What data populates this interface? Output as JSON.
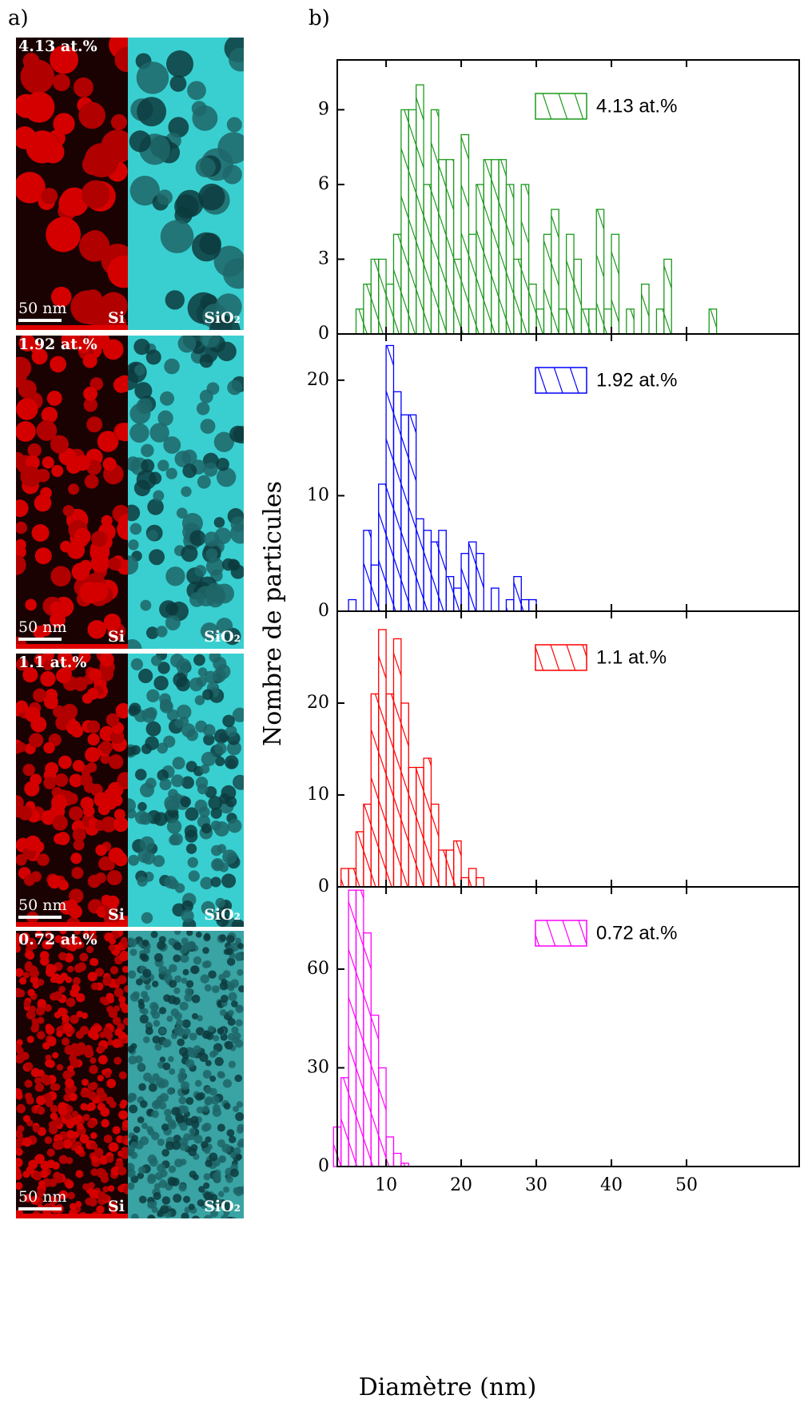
{
  "panel_labels": [
    "a)",
    "b)"
  ],
  "images": [
    {
      "label": "4.13 at.%",
      "scale": "50 nm",
      "left": "Si",
      "right": "SiO₂"
    },
    {
      "label": "1.92 at.%",
      "scale": "50 nm",
      "left": "Si",
      "right": "SiO₂"
    },
    {
      "label": "1.1 at.%",
      "scale": "50 nm",
      "left": "Si",
      "right": "SiO₂"
    },
    {
      "label": "0.72 at.%",
      "scale": "50 nm",
      "left": "Si",
      "right": "SiO₂"
    }
  ],
  "xlabel": "Diamètre (nm)",
  "ylabel": "Nombre de particules",
  "chart_data": [
    {
      "type": "histogram",
      "series_name": "4.13 at.%",
      "color": "#1a9a1a",
      "bins": [
        6,
        7,
        8,
        9,
        10,
        11,
        12,
        13,
        14,
        15,
        16,
        17,
        18,
        19,
        20,
        21,
        22,
        23,
        24,
        25,
        26,
        27,
        28,
        29,
        30,
        31,
        32,
        33,
        34,
        35,
        36,
        37,
        38,
        39,
        40,
        41,
        42,
        43,
        44,
        45,
        46,
        47,
        48,
        49,
        50,
        51,
        52,
        53,
        54
      ],
      "counts": [
        1,
        2,
        3,
        3,
        2,
        4,
        9,
        9,
        10,
        6,
        9,
        7,
        7,
        3,
        8,
        4,
        6,
        7,
        7,
        7,
        6,
        3,
        6,
        2,
        1,
        4,
        5,
        1,
        4,
        3,
        1,
        1,
        5,
        1,
        4,
        0,
        1,
        0,
        2,
        0,
        1,
        3,
        0,
        0,
        0,
        0,
        0,
        1
      ],
      "xlim": [
        3.5,
        65
      ],
      "xticks": [
        10,
        20,
        30,
        40,
        50
      ],
      "ylim": [
        0,
        11
      ],
      "yticks": [
        0,
        3,
        6,
        9
      ]
    },
    {
      "type": "histogram",
      "series_name": "1.92 at.%",
      "color": "#0000ff",
      "bins": [
        5,
        6,
        7,
        8,
        9,
        10,
        11,
        12,
        13,
        14,
        15,
        16,
        17,
        18,
        19,
        20,
        21,
        22,
        23,
        24,
        25,
        26,
        27,
        28,
        29,
        30
      ],
      "counts": [
        1,
        0,
        7,
        4,
        11,
        23,
        19,
        17,
        17,
        8,
        7,
        6,
        7,
        3,
        2,
        5,
        6,
        5,
        0,
        2,
        0,
        1,
        3,
        1,
        1
      ],
      "xlim": [
        3.5,
        65
      ],
      "xticks": [
        10,
        20,
        30,
        40,
        50
      ],
      "ylim": [
        0,
        24
      ],
      "yticks": [
        0,
        10,
        20
      ]
    },
    {
      "type": "histogram",
      "series_name": "1.1 at.%",
      "color": "#ff0000",
      "bins": [
        4,
        5,
        6,
        7,
        8,
        9,
        10,
        11,
        12,
        13,
        14,
        15,
        16,
        17,
        18,
        19,
        20,
        21,
        22,
        23
      ],
      "counts": [
        2,
        2,
        6,
        9,
        21,
        28,
        21,
        27,
        20,
        13,
        13,
        14,
        9,
        4,
        4,
        5,
        1,
        2,
        1
      ],
      "xlim": [
        3.5,
        65
      ],
      "xticks": [
        10,
        20,
        30,
        40,
        50
      ],
      "ylim": [
        0,
        30
      ],
      "yticks": [
        0,
        10,
        20
      ]
    },
    {
      "type": "histogram",
      "series_name": "0.72 at.%",
      "color": "#ff00ff",
      "bins": [
        3,
        4,
        5,
        6,
        7,
        8,
        9,
        10,
        11,
        12,
        13
      ],
      "counts": [
        12,
        27,
        84,
        84,
        71,
        46,
        30,
        9,
        4,
        1
      ],
      "xlim": [
        3.5,
        65
      ],
      "xticks": [
        10,
        20,
        30,
        40,
        50
      ],
      "ylim": [
        0,
        85
      ],
      "yticks": [
        0,
        30,
        60
      ]
    }
  ]
}
